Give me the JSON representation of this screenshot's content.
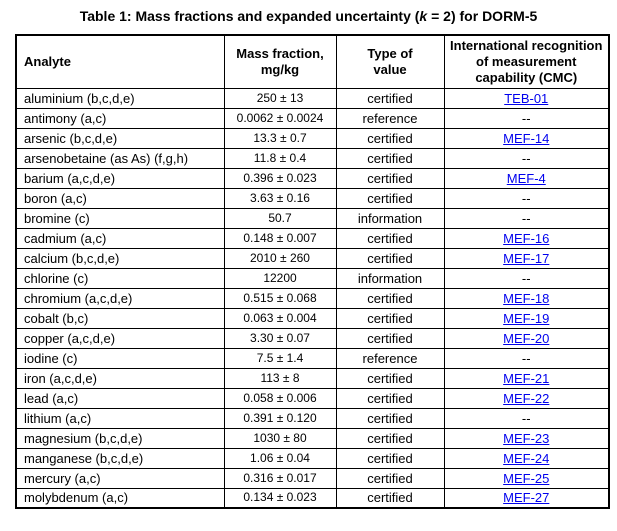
{
  "page": {
    "title_pre": "Table 1: Mass fractions and expanded uncertainty (",
    "title_k": "k",
    "title_post": " = 2) for DORM-5"
  },
  "table": {
    "headers": [
      "Analyte",
      "Mass fraction,\nmg/kg",
      "Type of\nvalue",
      "International recognition\nof measurement\ncapability (CMC)"
    ],
    "column_keys": [
      "analyte",
      "mass_fraction",
      "type_of_value",
      "cmc"
    ],
    "link_color": "#0000EE",
    "rows": [
      {
        "analyte": "aluminium (b,c,d,e)",
        "mass_fraction": "250 ± 13",
        "type_of_value": "certified",
        "cmc": "TEB-01",
        "cmc_is_link": true
      },
      {
        "analyte": "antimony (a,c)",
        "mass_fraction": "0.0062 ± 0.0024",
        "type_of_value": "reference",
        "cmc": "--",
        "cmc_is_link": false
      },
      {
        "analyte": "arsenic (b,c,d,e)",
        "mass_fraction": "13.3 ± 0.7",
        "type_of_value": "certified",
        "cmc": "MEF-14",
        "cmc_is_link": true
      },
      {
        "analyte": "arsenobetaine (as As) (f,g,h)",
        "mass_fraction": "11.8 ± 0.4",
        "type_of_value": "certified",
        "cmc": "--",
        "cmc_is_link": false
      },
      {
        "analyte": "barium (a,c,d,e)",
        "mass_fraction": "0.396 ± 0.023",
        "type_of_value": "certified",
        "cmc": "MEF-4",
        "cmc_is_link": true
      },
      {
        "analyte": "boron (a,c)",
        "mass_fraction": "3.63 ± 0.16",
        "type_of_value": "certified",
        "cmc": "--",
        "cmc_is_link": false
      },
      {
        "analyte": "bromine (c)",
        "mass_fraction": "50.7",
        "type_of_value": "information",
        "cmc": "--",
        "cmc_is_link": false
      },
      {
        "analyte": "cadmium (a,c)",
        "mass_fraction": "0.148 ± 0.007",
        "type_of_value": "certified",
        "cmc": "MEF-16",
        "cmc_is_link": true
      },
      {
        "analyte": "calcium (b,c,d,e)",
        "mass_fraction": "2010 ± 260",
        "type_of_value": "certified",
        "cmc": "MEF-17",
        "cmc_is_link": true
      },
      {
        "analyte": "chlorine (c)",
        "mass_fraction": "12200",
        "type_of_value": "information",
        "cmc": "--",
        "cmc_is_link": false
      },
      {
        "analyte": "chromium (a,c,d,e)",
        "mass_fraction": "0.515 ± 0.068",
        "type_of_value": "certified",
        "cmc": "MEF-18",
        "cmc_is_link": true
      },
      {
        "analyte": "cobalt (b,c)",
        "mass_fraction": "0.063 ± 0.004",
        "type_of_value": "certified",
        "cmc": "MEF-19",
        "cmc_is_link": true
      },
      {
        "analyte": "copper (a,c,d,e)",
        "mass_fraction": "3.30 ± 0.07",
        "type_of_value": "certified",
        "cmc": "MEF-20",
        "cmc_is_link": true
      },
      {
        "analyte": "iodine (c)",
        "mass_fraction": "7.5 ± 1.4",
        "type_of_value": "reference",
        "cmc": "--",
        "cmc_is_link": false
      },
      {
        "analyte": "iron (a,c,d,e)",
        "mass_fraction": "113 ± 8",
        "type_of_value": "certified",
        "cmc": "MEF-21",
        "cmc_is_link": true
      },
      {
        "analyte": "lead (a,c)",
        "mass_fraction": "0.058 ± 0.006",
        "type_of_value": "certified",
        "cmc": "MEF-22",
        "cmc_is_link": true
      },
      {
        "analyte": "lithium (a,c)",
        "mass_fraction": "0.391 ± 0.120",
        "type_of_value": "certified",
        "cmc": "--",
        "cmc_is_link": false
      },
      {
        "analyte": "magnesium (b,c,d,e)",
        "mass_fraction": "1030 ± 80",
        "type_of_value": "certified",
        "cmc": "MEF-23",
        "cmc_is_link": true
      },
      {
        "analyte": "manganese (b,c,d,e)",
        "mass_fraction": "1.06 ± 0.04",
        "type_of_value": "certified",
        "cmc": "MEF-24",
        "cmc_is_link": true
      },
      {
        "analyte": "mercury (a,c)",
        "mass_fraction": "0.316 ± 0.017",
        "type_of_value": "certified",
        "cmc": "MEF-25",
        "cmc_is_link": true
      },
      {
        "analyte": "molybdenum (a,c)",
        "mass_fraction": "0.134 ± 0.023",
        "type_of_value": "certified",
        "cmc": "MEF-27",
        "cmc_is_link": true
      }
    ]
  }
}
